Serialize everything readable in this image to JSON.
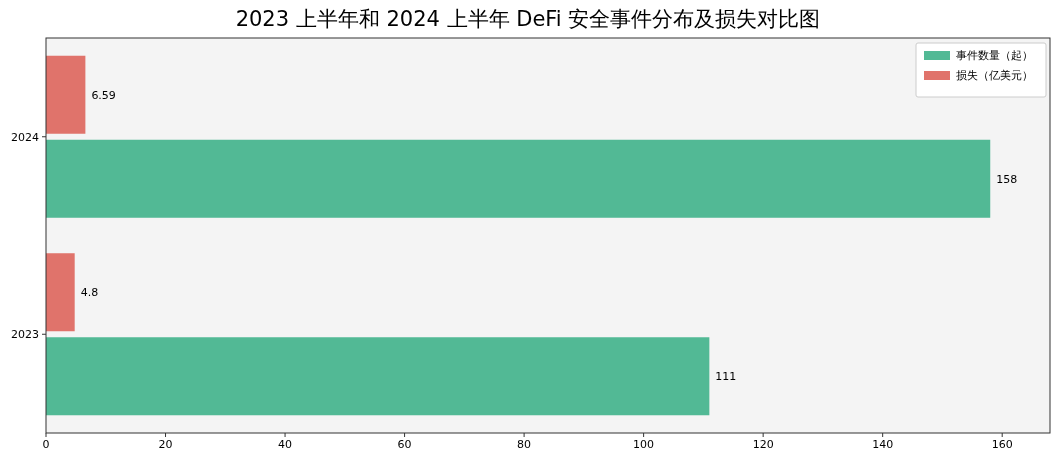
{
  "chart_data": {
    "type": "bar",
    "orientation": "horizontal",
    "title": "2023 上半年和 2024 上半年 DeFi 安全事件分布及损失对比图",
    "categories": [
      "2024",
      "2023"
    ],
    "series": [
      {
        "name": "事件数量（起）",
        "color": "#52b995",
        "values": [
          158,
          111
        ]
      },
      {
        "name": "损失（亿美元）",
        "color": "#e0736b",
        "values": [
          6.59,
          4.8
        ]
      }
    ],
    "xlim": [
      0,
      168
    ],
    "xticks": [
      0,
      20,
      40,
      60,
      80,
      100,
      120,
      140,
      160
    ],
    "data_labels": true,
    "legend": "top right",
    "grid": false
  }
}
